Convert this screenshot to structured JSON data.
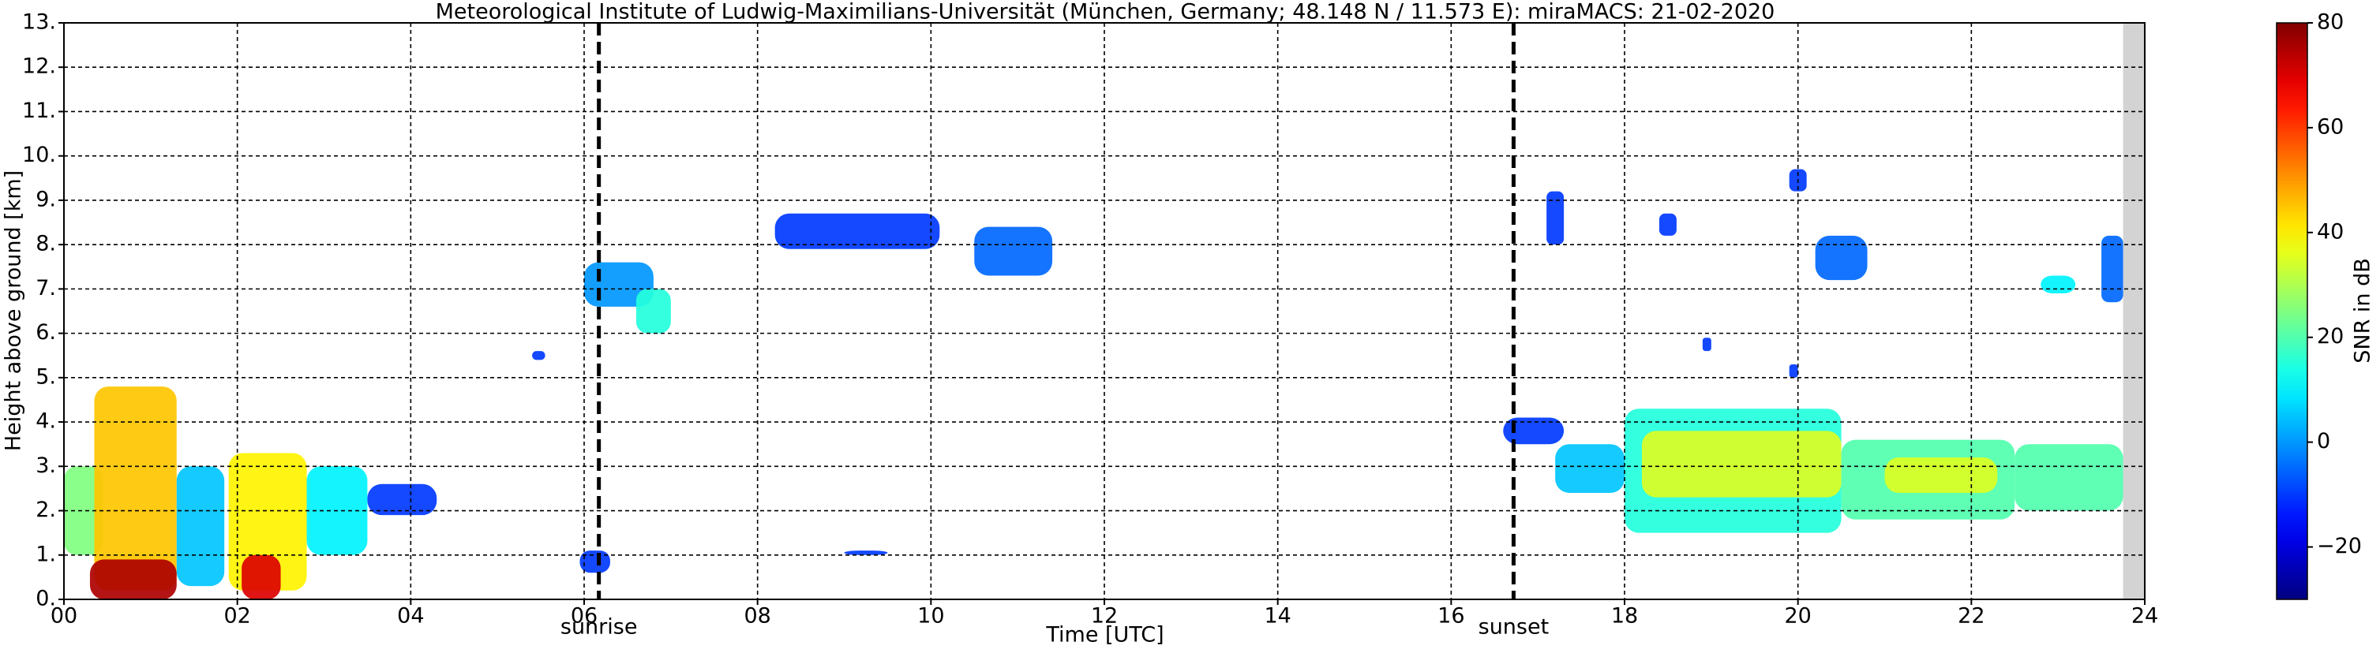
{
  "chart_data": {
    "type": "radar",
    "title": "Meteorological Institute of Ludwig-Maximilians-Universität (München, Germany; 48.148 N / 11.573 E):    miraMACS: 21-02-2020",
    "xlabel": "Time [UTC]",
    "ylabel": "Height above ground [km]",
    "xlim": [
      0,
      24
    ],
    "ylim": [
      0,
      13
    ],
    "xticks": [
      {
        "value": 0,
        "label": "00"
      },
      {
        "value": 2,
        "label": "02"
      },
      {
        "value": 4,
        "label": "04"
      },
      {
        "value": 6,
        "label": "06"
      },
      {
        "value": 8,
        "label": "08"
      },
      {
        "value": 10,
        "label": "10"
      },
      12,
      14,
      16,
      18,
      20,
      22,
      24
    ],
    "yticks": [
      {
        "value": 0,
        "label": "0."
      },
      {
        "value": 1,
        "label": "1."
      },
      {
        "value": 2,
        "label": "2."
      },
      {
        "value": 3,
        "label": "3."
      },
      {
        "value": 4,
        "label": "4."
      },
      {
        "value": 5,
        "label": "5."
      },
      {
        "value": 6,
        "label": "6."
      },
      {
        "value": 7,
        "label": "7."
      },
      {
        "value": 8,
        "label": "8."
      },
      {
        "value": 9,
        "label": "9."
      },
      {
        "value": 10,
        "label": "10."
      },
      {
        "value": 11,
        "label": "11."
      },
      {
        "value": 12,
        "label": "12."
      },
      {
        "value": 13,
        "label": "13."
      }
    ],
    "grid": true,
    "missing": {
      "x": [
        23.75,
        24
      ],
      "color": "#d3d3d3"
    },
    "annotations": [
      {
        "x": 6.17,
        "text": "sunrise"
      },
      {
        "x": 16.72,
        "text": "sunset"
      }
    ],
    "colorbar": {
      "label": "SNR in dB",
      "lim": [
        -30,
        80
      ],
      "ticks": [
        {
          "value": -20,
          "label": "−20"
        },
        0,
        20,
        40,
        60,
        80
      ]
    },
    "patches": [
      {
        "t0": 0.0,
        "t1": 0.45,
        "h0": 1.0,
        "h1": 3.0,
        "snr": 25
      },
      {
        "t0": 0.35,
        "t1": 1.3,
        "h0": 0.2,
        "h1": 4.8,
        "snr": 45
      },
      {
        "t0": 0.3,
        "t1": 1.3,
        "h0": 0.0,
        "h1": 0.9,
        "snr": 75
      },
      {
        "t0": 1.3,
        "t1": 1.85,
        "h0": 0.3,
        "h1": 3.0,
        "snr": 5
      },
      {
        "t0": 1.9,
        "t1": 2.8,
        "h0": 0.2,
        "h1": 3.3,
        "snr": 40
      },
      {
        "t0": 2.05,
        "t1": 2.5,
        "h0": 0.0,
        "h1": 1.0,
        "snr": 70
      },
      {
        "t0": 2.8,
        "t1": 3.5,
        "h0": 1.0,
        "h1": 3.0,
        "snr": 10
      },
      {
        "t0": 3.5,
        "t1": 4.3,
        "h0": 1.9,
        "h1": 2.6,
        "snr": -10
      },
      {
        "t0": 5.95,
        "t1": 6.3,
        "h0": 0.6,
        "h1": 1.1,
        "snr": -10
      },
      {
        "t0": 5.4,
        "t1": 5.55,
        "h0": 5.4,
        "h1": 5.6,
        "snr": -10
      },
      {
        "t0": 6.0,
        "t1": 6.8,
        "h0": 6.6,
        "h1": 7.6,
        "snr": 0
      },
      {
        "t0": 6.6,
        "t1": 7.0,
        "h0": 6.0,
        "h1": 7.0,
        "snr": 15
      },
      {
        "t0": 8.2,
        "t1": 10.1,
        "h0": 7.9,
        "h1": 8.7,
        "snr": -10
      },
      {
        "t0": 10.5,
        "t1": 11.4,
        "h0": 7.3,
        "h1": 8.4,
        "snr": -5
      },
      {
        "t0": 9.0,
        "t1": 9.5,
        "h0": 1.0,
        "h1": 1.1,
        "snr": -10
      },
      {
        "t0": 16.6,
        "t1": 17.3,
        "h0": 3.5,
        "h1": 4.1,
        "snr": -10
      },
      {
        "t0": 17.2,
        "t1": 18.0,
        "h0": 2.4,
        "h1": 3.5,
        "snr": 5
      },
      {
        "t0": 18.0,
        "t1": 20.5,
        "h0": 1.5,
        "h1": 4.3,
        "snr": 15
      },
      {
        "t0": 18.2,
        "t1": 20.5,
        "h0": 2.3,
        "h1": 3.8,
        "snr": 35
      },
      {
        "t0": 20.5,
        "t1": 22.5,
        "h0": 1.8,
        "h1": 3.6,
        "snr": 20
      },
      {
        "t0": 21.0,
        "t1": 22.3,
        "h0": 2.4,
        "h1": 3.2,
        "snr": 35
      },
      {
        "t0": 22.5,
        "t1": 23.75,
        "h0": 2.0,
        "h1": 3.5,
        "snr": 20
      },
      {
        "t0": 17.1,
        "t1": 17.3,
        "h0": 8.0,
        "h1": 9.2,
        "snr": -10
      },
      {
        "t0": 18.4,
        "t1": 18.6,
        "h0": 8.2,
        "h1": 8.7,
        "snr": -10
      },
      {
        "t0": 19.9,
        "t1": 20.1,
        "h0": 9.2,
        "h1": 9.7,
        "snr": -10
      },
      {
        "t0": 20.2,
        "t1": 20.8,
        "h0": 7.2,
        "h1": 8.2,
        "snr": -5
      },
      {
        "t0": 22.8,
        "t1": 23.2,
        "h0": 6.9,
        "h1": 7.3,
        "snr": 10
      },
      {
        "t0": 23.5,
        "t1": 23.75,
        "h0": 6.7,
        "h1": 8.2,
        "snr": -5
      },
      {
        "t0": 18.9,
        "t1": 19.0,
        "h0": 5.6,
        "h1": 5.9,
        "snr": -10
      },
      {
        "t0": 19.9,
        "t1": 20.0,
        "h0": 5.0,
        "h1": 5.3,
        "snr": -10
      }
    ]
  }
}
